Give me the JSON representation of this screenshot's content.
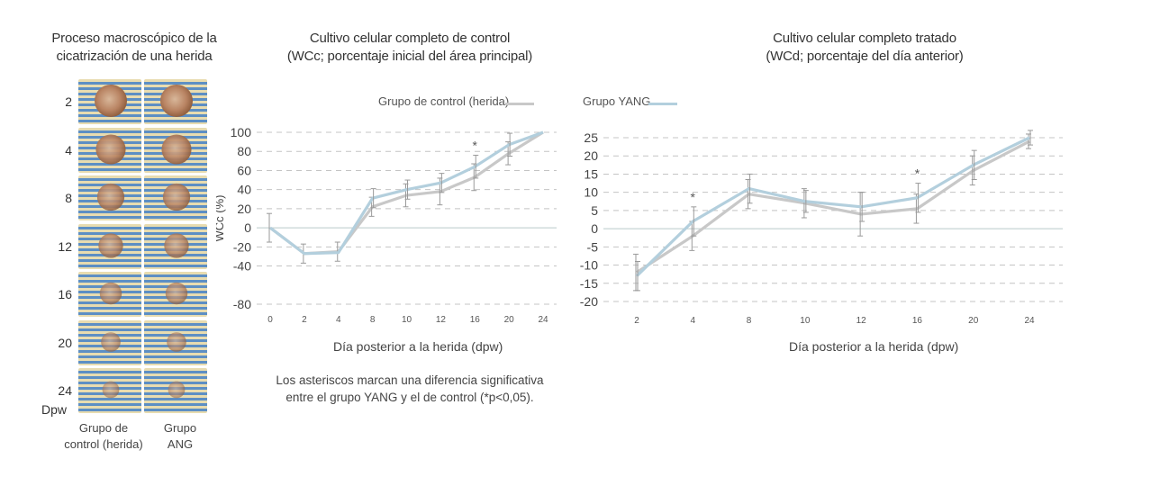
{
  "left_panel": {
    "title_line1": "Proceso macroscópico de la",
    "title_line2": "cicatrización de una herida",
    "rows": [
      "2",
      "4",
      "8",
      "12",
      "16",
      "20",
      "24"
    ],
    "row_axis_label": "Dpw",
    "col1_line1": "Grupo de",
    "col1_line2": "control (herida)",
    "col2_line1": "Grupo",
    "col2_line2": "ANG"
  },
  "note_line1": "Los asteriscos marcan una diferencia significativa",
  "note_line2": "entre el grupo YANG y el de control (*p<0,05).",
  "chart_data": [
    {
      "type": "line",
      "title_line1": "Cultivo celular completo de control",
      "title_line2": "(WCc; porcentaje inicial del área principal)",
      "xlabel": "Día posterior a la herida (dpw)",
      "ylabel": "WCc (%)",
      "categories": [
        "0",
        "2",
        "4",
        "8",
        "10",
        "12",
        "16",
        "20",
        "24"
      ],
      "ylim": [
        -80,
        100
      ],
      "yticks": [
        100,
        80,
        60,
        40,
        20,
        0,
        -20,
        -40,
        -80
      ],
      "legend_label": "Grupo de control (herida)",
      "series": [
        {
          "name": "Grupo de control (herida)",
          "color": "#c8c8c8",
          "values": [
            0,
            -27,
            -25,
            22,
            34,
            38,
            53,
            78,
            100
          ],
          "err": [
            15,
            10,
            10,
            10,
            12,
            14,
            14,
            12,
            0
          ]
        },
        {
          "name": "Grupo YANG",
          "color": "#b3cfdd",
          "values": [
            0,
            -27,
            -26,
            31,
            40,
            47,
            64,
            87,
            100
          ],
          "err": [
            0,
            0,
            0,
            10,
            10,
            10,
            12,
            12,
            0
          ]
        }
      ],
      "asterisks": [
        "16"
      ]
    },
    {
      "type": "line",
      "title_line1": "Cultivo celular completo tratado",
      "title_line2": "(WCd; porcentaje del día anterior)",
      "xlabel": "Día posterior a la herida (dpw)",
      "categories": [
        "2",
        "4",
        "8",
        "10",
        "12",
        "16",
        "20",
        "24"
      ],
      "ylim": [
        -20,
        25
      ],
      "yticks": [
        25,
        20,
        15,
        10,
        5,
        0,
        -5,
        -10,
        -15,
        -20
      ],
      "legend_label": "Grupo YANG",
      "series": [
        {
          "name": "Grupo de control (herida)",
          "color": "#c8c8c8",
          "values": [
            -12,
            -2,
            9.5,
            7,
            4,
            5.5,
            16,
            24
          ],
          "err": [
            5,
            4,
            4,
            4,
            6,
            4,
            4,
            2
          ]
        },
        {
          "name": "Grupo YANG",
          "color": "#b3cfdd",
          "values": [
            -13,
            2,
            11,
            7.5,
            6,
            8.5,
            17.5,
            25
          ],
          "err": [
            4,
            4,
            4,
            3,
            4,
            4,
            4,
            2
          ]
        }
      ],
      "asterisks": [
        "4",
        "16"
      ]
    }
  ]
}
